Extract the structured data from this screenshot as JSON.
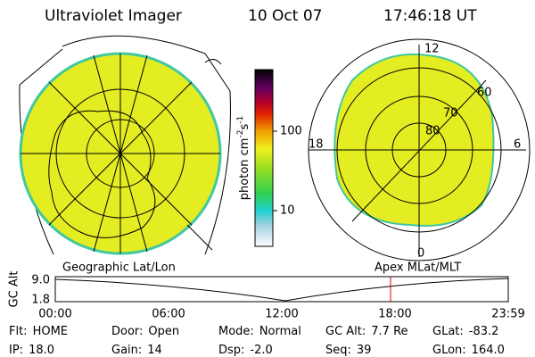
{
  "header": {
    "title": "Ultraviolet Imager",
    "date": "10 Oct 07",
    "time": "17:46:18 UT"
  },
  "colorbar": {
    "label": "photon cm",
    "exp1": "-2",
    "unit2": "s",
    "exp2": "-1",
    "ticks": [
      "100",
      "10"
    ]
  },
  "polar_plot": {
    "mlt_labels": [
      "12",
      "18",
      "6",
      "0"
    ],
    "lat_labels": [
      "80",
      "70",
      "60"
    ]
  },
  "timeline": {
    "left_caption": "Geographic Lat/Lon",
    "right_caption": "Apex MLat/MLT",
    "axis_label": "GC Alt",
    "y_labels": [
      "9.0",
      "1.8"
    ],
    "x_labels": [
      "00:00",
      "06:00",
      "12:00",
      "18:00",
      "23:59"
    ]
  },
  "status": [
    [
      {
        "label": "Flt:",
        "value": "HOME"
      },
      {
        "label": "Door:",
        "value": "Open"
      },
      {
        "label": "Mode:",
        "value": "Normal"
      },
      {
        "label": "GC Alt:",
        "value": "7.7 Re"
      },
      {
        "label": "GLat:",
        "value": "-83.2"
      }
    ],
    [
      {
        "label": "IP:",
        "value": "18.0"
      },
      {
        "label": "Gain:",
        "value": "14"
      },
      {
        "label": "Dsp:",
        "value": "-2.0"
      },
      {
        "label": "Seq:",
        "value": "39"
      },
      {
        "label": "GLon:",
        "value": "164.0"
      }
    ]
  ]
}
